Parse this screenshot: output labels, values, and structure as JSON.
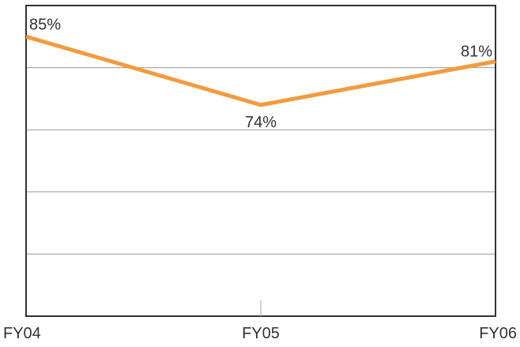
{
  "chart_data": {
    "type": "line",
    "categories": [
      "FY04",
      "FY05",
      "FY06"
    ],
    "series": [
      {
        "values": [
          85,
          74,
          81
        ],
        "labels": [
          "85%",
          "74%",
          "81%"
        ],
        "color": "#f29b3f"
      }
    ],
    "ylim": [
      40,
      90
    ],
    "grid": true,
    "colors": {
      "line": "#f29b3f",
      "grid": "#9a9a9a",
      "frame": "#333333"
    }
  }
}
